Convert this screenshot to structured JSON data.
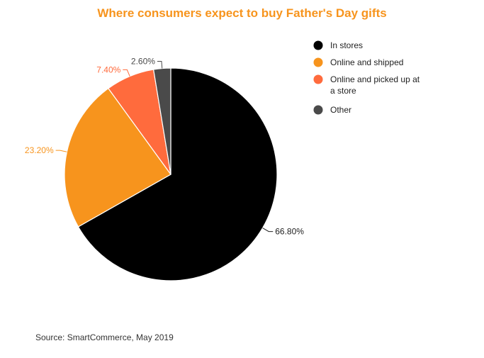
{
  "chart_data": {
    "type": "pie",
    "title": "Where consumers expect to buy Father's Day gifts",
    "slices": [
      {
        "label": "In stores",
        "lines": [
          "In stores"
        ],
        "value": 66.8,
        "display": "66.80%",
        "color": "#000000",
        "label_color": "#222222"
      },
      {
        "label": "Online and shipped",
        "lines": [
          "Online and shipped"
        ],
        "value": 23.2,
        "display": "23.20%",
        "color": "#f7941d",
        "label_color": "#f7941d"
      },
      {
        "label": "Online and picked up at a store",
        "lines": [
          "Online and picked up at",
          "a store"
        ],
        "value": 7.4,
        "display": "7.40%",
        "color": "#ff6b3d",
        "label_color": "#ff6b3d"
      },
      {
        "label": "Other",
        "lines": [
          "Other"
        ],
        "value": 2.6,
        "display": "2.60%",
        "color": "#4a4a4a",
        "label_color": "#4a4a4a"
      }
    ],
    "legend_position": "right"
  },
  "source": "Source: SmartCommerce, May 2019"
}
